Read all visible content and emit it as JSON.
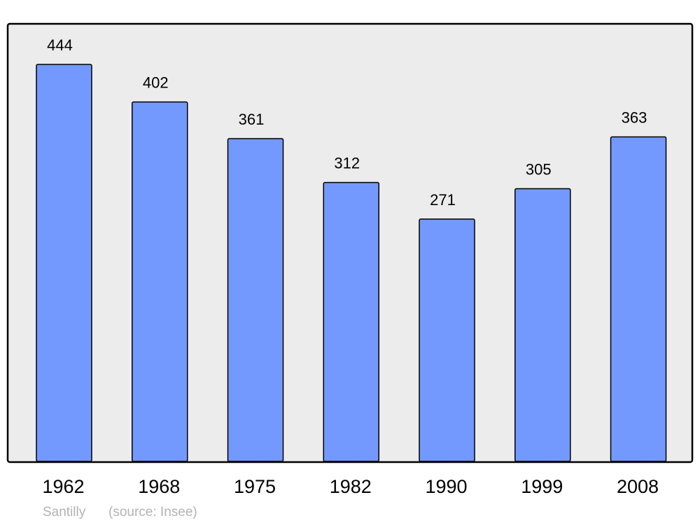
{
  "chart_data": {
    "type": "bar",
    "categories": [
      "1962",
      "1968",
      "1975",
      "1982",
      "1990",
      "1999",
      "2008"
    ],
    "values": [
      444,
      402,
      361,
      312,
      271,
      305,
      363
    ],
    "title": "",
    "xlabel": "",
    "ylabel": "",
    "ylim": [
      0,
      444
    ],
    "grid": false,
    "data_labels": true,
    "colors": {
      "bar": "#7399ff",
      "plot_background": "#ececec",
      "border": "#000000"
    }
  },
  "footer": {
    "place": "Santilly",
    "source": "(source: Insee)"
  }
}
